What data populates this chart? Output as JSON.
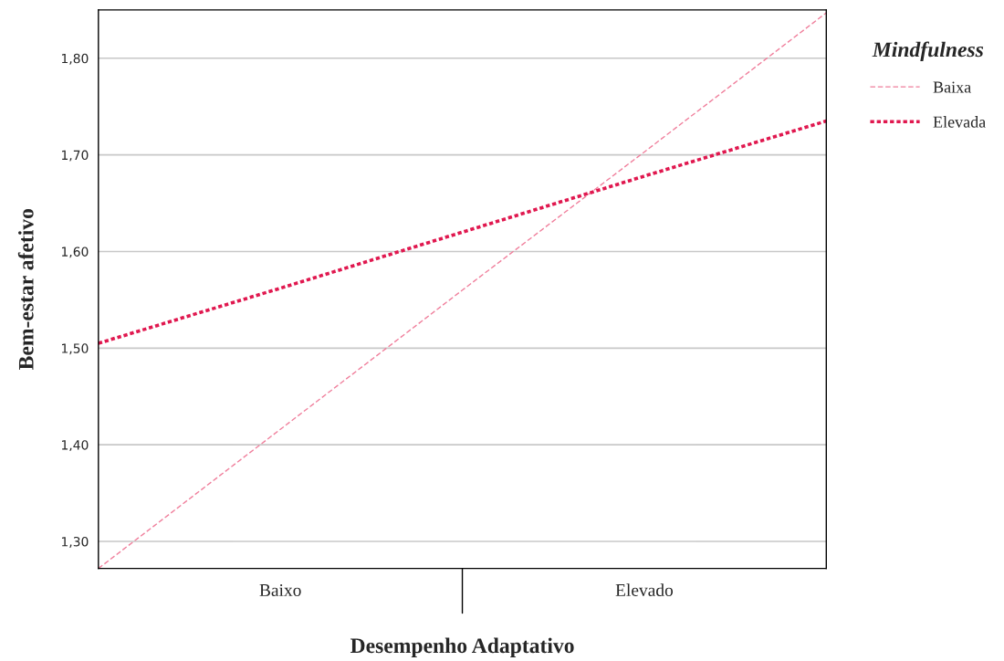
{
  "chart_data": {
    "type": "line",
    "xlabel": "Desempenho Adaptativo",
    "ylabel": "Bem-estar afetivo",
    "legend_title": "Mindfulness",
    "categories": [
      null,
      "Baixo",
      null,
      "Elevado",
      null
    ],
    "series": [
      {
        "name": "Baixa",
        "color": "#f07f9c",
        "line_style": "dashed",
        "values": [
          1.272,
          1.416,
          1.56,
          1.703,
          1.847
        ]
      },
      {
        "name": "Elevada",
        "color": "#e0184f",
        "line_style": "dotted",
        "values": [
          1.505,
          1.562,
          1.62,
          1.678,
          1.735
        ]
      }
    ],
    "ylim": [
      1.272,
      1.85
    ],
    "yticks": [
      {
        "value": 1.3,
        "label": "1,30"
      },
      {
        "value": 1.4,
        "label": "1,40"
      },
      {
        "value": 1.5,
        "label": "1,50"
      },
      {
        "value": 1.6,
        "label": "1,60"
      },
      {
        "value": 1.7,
        "label": "1,70"
      },
      {
        "value": 1.8,
        "label": "1,80"
      }
    ],
    "grid": "y",
    "legend": "right",
    "marker": "none"
  }
}
